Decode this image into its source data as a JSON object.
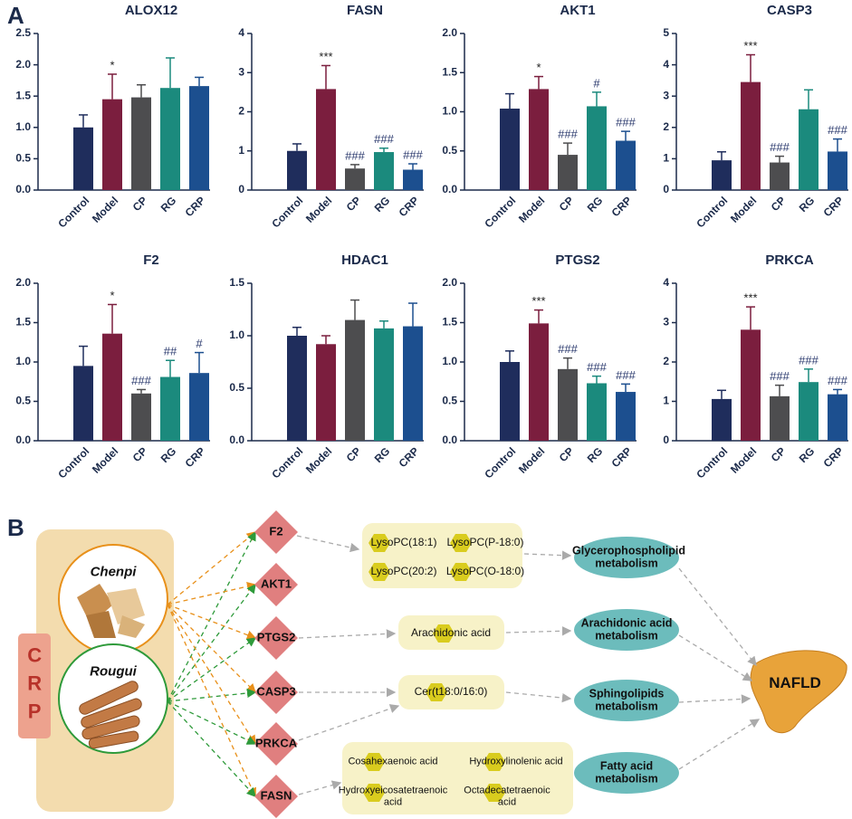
{
  "panel_labels": [
    "A",
    "B"
  ],
  "chart_data": [
    {
      "type": "bar",
      "title": "ALOX12",
      "categories": [
        "Control",
        "Model",
        "CP",
        "RG",
        "CRP"
      ],
      "values": [
        1.0,
        1.45,
        1.48,
        1.63,
        1.66
      ],
      "errors": [
        0.2,
        0.4,
        0.2,
        0.48,
        0.14
      ],
      "annotations": [
        null,
        "*",
        null,
        null,
        null
      ],
      "colors": [
        "#1f2d5c",
        "#7b1e3e",
        "#4d4d4f",
        "#1b8a7d",
        "#1c4f8f"
      ],
      "ylim": [
        0,
        2.5
      ],
      "yticks": [
        {
          "value": 0,
          "label": "0.0"
        },
        0.5,
        {
          "value": 1,
          "label": "1.0"
        },
        1.5,
        {
          "value": 2,
          "label": "2.0"
        },
        2.5
      ]
    },
    {
      "type": "bar",
      "title": "FASN",
      "categories": [
        "Control",
        "Model",
        "CP",
        "RG",
        "CRP"
      ],
      "values": [
        1.0,
        2.58,
        0.55,
        0.97,
        0.52
      ],
      "errors": [
        0.18,
        0.6,
        0.1,
        0.1,
        0.15
      ],
      "annotations": [
        null,
        "***",
        "###",
        "###",
        "###"
      ],
      "colors": [
        "#1f2d5c",
        "#7b1e3e",
        "#4d4d4f",
        "#1b8a7d",
        "#1c4f8f"
      ],
      "ylim": [
        0,
        4
      ],
      "yticks": [
        0,
        1,
        2,
        3,
        4
      ]
    },
    {
      "type": "bar",
      "title": "AKT1",
      "categories": [
        "Control",
        "Model",
        "CP",
        "RG",
        "CRP"
      ],
      "values": [
        1.04,
        1.29,
        0.45,
        1.07,
        0.63
      ],
      "errors": [
        0.19,
        0.16,
        0.15,
        0.18,
        0.12
      ],
      "annotations": [
        null,
        "*",
        "###",
        "#",
        "###"
      ],
      "colors": [
        "#1f2d5c",
        "#7b1e3e",
        "#4d4d4f",
        "#1b8a7d",
        "#1c4f8f"
      ],
      "ylim": [
        0,
        2
      ],
      "yticks": [
        {
          "value": 0,
          "label": "0.0"
        },
        0.5,
        {
          "value": 1,
          "label": "1.0"
        },
        1.5,
        {
          "value": 2,
          "label": "2.0"
        }
      ]
    },
    {
      "type": "bar",
      "title": "CASP3",
      "categories": [
        "Control",
        "Model",
        "CP",
        "RG",
        "CRP"
      ],
      "values": [
        0.95,
        3.45,
        0.88,
        2.58,
        1.23
      ],
      "errors": [
        0.27,
        0.87,
        0.2,
        0.62,
        0.4
      ],
      "annotations": [
        null,
        "***",
        "###",
        null,
        "###"
      ],
      "colors": [
        "#1f2d5c",
        "#7b1e3e",
        "#4d4d4f",
        "#1b8a7d",
        "#1c4f8f"
      ],
      "ylim": [
        0,
        5
      ],
      "yticks": [
        0,
        1,
        2,
        3,
        4,
        5
      ]
    },
    {
      "type": "bar",
      "title": "F2",
      "categories": [
        "Control",
        "Model",
        "CP",
        "RG",
        "CRP"
      ],
      "values": [
        0.95,
        1.36,
        0.6,
        0.81,
        0.86
      ],
      "errors": [
        0.25,
        0.37,
        0.05,
        0.21,
        0.26
      ],
      "annotations": [
        null,
        "*",
        "###",
        "##",
        "#"
      ],
      "colors": [
        "#1f2d5c",
        "#7b1e3e",
        "#4d4d4f",
        "#1b8a7d",
        "#1c4f8f"
      ],
      "ylim": [
        0,
        2
      ],
      "yticks": [
        {
          "value": 0,
          "label": "0.0"
        },
        0.5,
        {
          "value": 1,
          "label": "1.0"
        },
        1.5,
        {
          "value": 2,
          "label": "2.0"
        }
      ]
    },
    {
      "type": "bar",
      "title": "HDAC1",
      "categories": [
        "Control",
        "Model",
        "CP",
        "RG",
        "CRP"
      ],
      "values": [
        1.0,
        0.92,
        1.15,
        1.07,
        1.09
      ],
      "errors": [
        0.08,
        0.08,
        0.19,
        0.07,
        0.22
      ],
      "annotations": [
        null,
        null,
        null,
        null,
        null
      ],
      "colors": [
        "#1f2d5c",
        "#7b1e3e",
        "#4d4d4f",
        "#1b8a7d",
        "#1c4f8f"
      ],
      "ylim": [
        0,
        1.5
      ],
      "yticks": [
        {
          "value": 0,
          "label": "0.0"
        },
        0.5,
        {
          "value": 1,
          "label": "1.0"
        },
        1.5
      ]
    },
    {
      "type": "bar",
      "title": "PTGS2",
      "categories": [
        "Control",
        "Model",
        "CP",
        "RG",
        "CRP"
      ],
      "values": [
        1.0,
        1.49,
        0.91,
        0.73,
        0.62
      ],
      "errors": [
        0.14,
        0.17,
        0.14,
        0.09,
        0.1
      ],
      "annotations": [
        null,
        "***",
        "###",
        "###",
        "###"
      ],
      "colors": [
        "#1f2d5c",
        "#7b1e3e",
        "#4d4d4f",
        "#1b8a7d",
        "#1c4f8f"
      ],
      "ylim": [
        0,
        2
      ],
      "yticks": [
        {
          "value": 0,
          "label": "0.0"
        },
        0.5,
        {
          "value": 1,
          "label": "1.0"
        },
        1.5,
        {
          "value": 2,
          "label": "2.0"
        }
      ]
    },
    {
      "type": "bar",
      "title": "PRKCA",
      "categories": [
        "Control",
        "Model",
        "CP",
        "RG",
        "CRP"
      ],
      "values": [
        1.06,
        2.82,
        1.13,
        1.49,
        1.18
      ],
      "errors": [
        0.22,
        0.58,
        0.28,
        0.33,
        0.12
      ],
      "annotations": [
        null,
        "***",
        "###",
        "###",
        "###"
      ],
      "colors": [
        "#1f2d5c",
        "#7b1e3e",
        "#4d4d4f",
        "#1b8a7d",
        "#1c4f8f"
      ],
      "ylim": [
        0,
        4
      ],
      "yticks": [
        0,
        1,
        2,
        3,
        4
      ]
    }
  ],
  "diagram": {
    "group_label": "CRP",
    "herbs": [
      "Chenpi",
      "Rougui"
    ],
    "targets": [
      "F2",
      "AKT1",
      "PTGS2",
      "CASP3",
      "PRKCA",
      "FASN"
    ],
    "metabolites": [
      [
        "LysoPC(18:1)",
        "LysoPC(P-18:0)",
        "LysoPC(20:2)",
        "LysoPC(O-18:0)"
      ],
      [
        "Arachidonic acid"
      ],
      [
        "Cer(t18:0/16:0)"
      ],
      [
        "Cosahexaenoic acid",
        "Hydroxylinolenic acid",
        "Hydroxyeicosatetraenoic acid",
        "Octadecatetraenoic acid"
      ]
    ],
    "pathways": [
      "Glycerophospholipid metabolism",
      "Arachidonic acid metabolism",
      "Sphingolipids metabolism",
      "Fatty acid metabolism"
    ],
    "disease": "NAFLD"
  }
}
